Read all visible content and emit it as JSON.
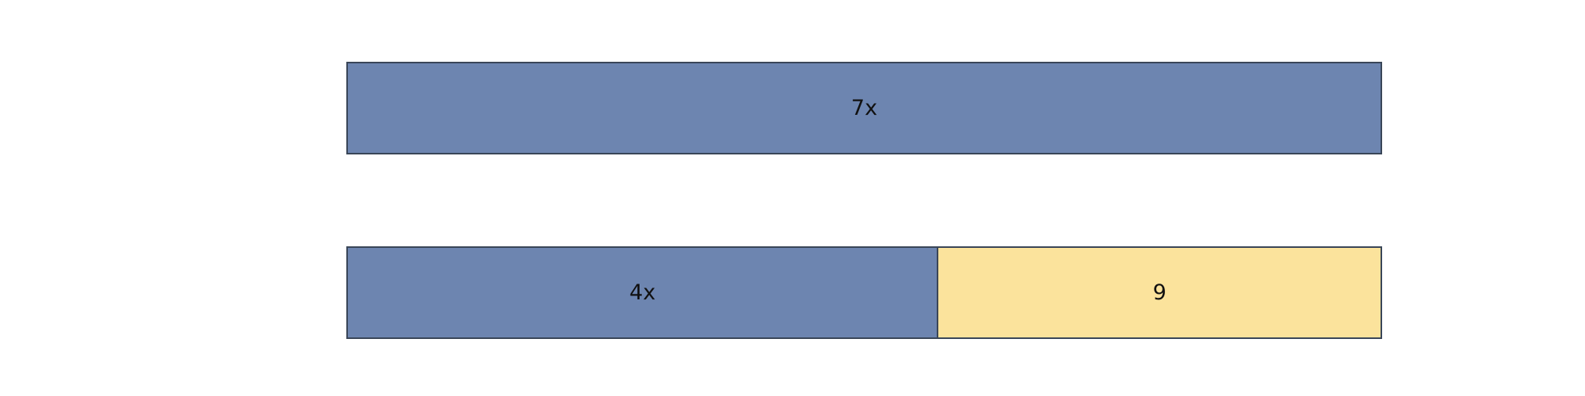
{
  "colors": {
    "variable": "#6d85b0",
    "constant": "#fbe39c",
    "border": "#3a4658"
  },
  "bar_model": {
    "top": {
      "segments": [
        {
          "label": "7x",
          "kind": "variable",
          "value": 7
        }
      ]
    },
    "bottom": {
      "segments": [
        {
          "label": "4x",
          "kind": "variable",
          "value": 4
        },
        {
          "label": "9",
          "kind": "constant",
          "value": 3
        }
      ]
    }
  }
}
